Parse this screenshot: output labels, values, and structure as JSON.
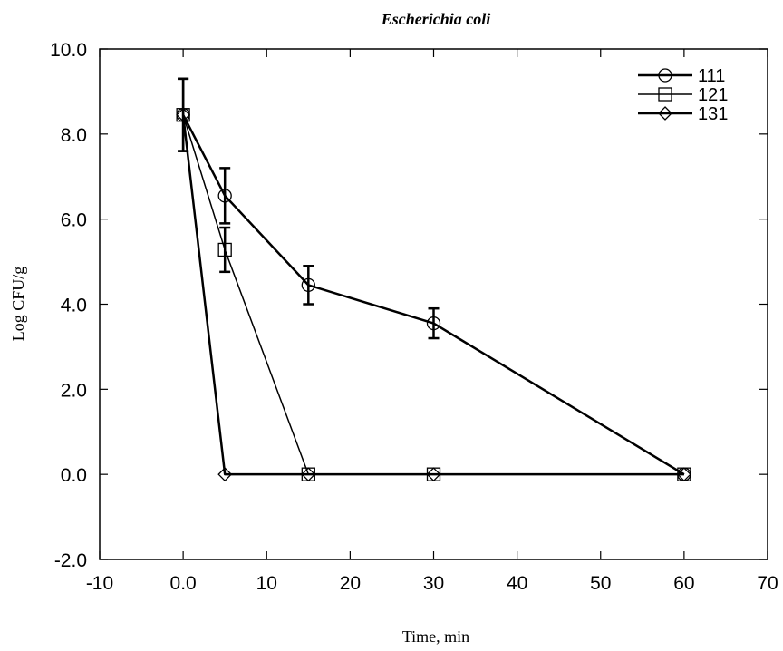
{
  "chart_data": {
    "type": "line",
    "title": "Escherichia coli",
    "xlabel": "Time, min",
    "ylabel": "Log CFU/g",
    "xlim": [
      -10,
      70
    ],
    "ylim": [
      -2,
      10
    ],
    "xticks": [
      "-10",
      "0.0",
      "10",
      "20",
      "30",
      "40",
      "50",
      "60",
      "70"
    ],
    "yticks": [
      "-2.0",
      "0.0",
      "2.0",
      "4.0",
      "6.0",
      "8.0",
      "10.0"
    ],
    "legend_position": "top-right",
    "grid": false,
    "series": [
      {
        "name": "111",
        "marker": "circle",
        "x": [
          0,
          5,
          15,
          30,
          60
        ],
        "y": [
          8.45,
          6.55,
          4.45,
          3.55,
          0.0
        ],
        "error": [
          0.85,
          0.65,
          0.45,
          0.35,
          0
        ]
      },
      {
        "name": "121",
        "marker": "square",
        "x": [
          0,
          5,
          15,
          30,
          60
        ],
        "y": [
          8.45,
          5.28,
          0.0,
          0.0,
          0.0
        ],
        "error": [
          0.85,
          0.52,
          0,
          0,
          0
        ]
      },
      {
        "name": "131",
        "marker": "diamond",
        "x": [
          0,
          5,
          15,
          30,
          60
        ],
        "y": [
          8.45,
          0.0,
          0.0,
          0.0,
          0.0
        ],
        "error": [
          0,
          0,
          0,
          0,
          0
        ]
      }
    ]
  }
}
